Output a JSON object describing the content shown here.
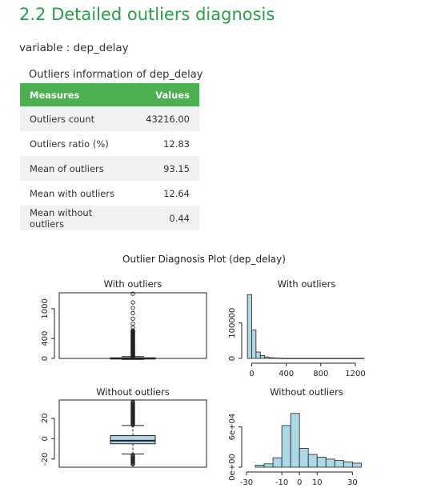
{
  "section": {
    "title": "2.2 Detailed outliers diagnosis",
    "variable_line": "variable : dep_delay"
  },
  "outliers_table": {
    "caption": "Outliers information of dep_delay",
    "headers": [
      "Measures",
      "Values"
    ],
    "rows": [
      {
        "measure": "Outliers count",
        "value": "43216.00"
      },
      {
        "measure": "Outliers ratio (%)",
        "value": "12.83"
      },
      {
        "measure": "Mean of outliers",
        "value": "93.15"
      },
      {
        "measure": "Mean with outliers",
        "value": "12.64"
      },
      {
        "measure": "Mean without outliers",
        "value": "0.44"
      }
    ]
  },
  "plot": {
    "main_title": "Outlier Diagnosis Plot (dep_delay)",
    "fill_color": "#add8e6"
  },
  "chart_data": [
    {
      "type": "box",
      "title": "With outliers",
      "ylim": [
        0,
        1320
      ],
      "y_ticks": [
        "0",
        "400",
        "1000"
      ],
      "y_tick_values": [
        0,
        400,
        1000
      ],
      "box": {
        "min": -20,
        "q1": -5,
        "median": -2,
        "q3": 12,
        "whisker_high": 37
      },
      "outliers": [
        45,
        60,
        80,
        100,
        130,
        160,
        200,
        240,
        280,
        320,
        360,
        400,
        450,
        500,
        560,
        620,
        700,
        800,
        911,
        1014,
        1126,
        1301
      ]
    },
    {
      "type": "bar",
      "title": "With outliers",
      "xlim": [
        -60,
        1330
      ],
      "ylim": [
        0,
        185000
      ],
      "x_ticks": [
        "0",
        "400",
        "800",
        "1200"
      ],
      "x_tick_values": [
        0,
        400,
        800,
        1200
      ],
      "y_ticks": [
        "0",
        "100000"
      ],
      "y_tick_values": [
        0,
        100000
      ],
      "bins": [
        {
          "from": -50,
          "to": 0,
          "count": 180000
        },
        {
          "from": 0,
          "to": 50,
          "count": 80000
        },
        {
          "from": 50,
          "to": 100,
          "count": 18000
        },
        {
          "from": 100,
          "to": 150,
          "count": 8000
        },
        {
          "from": 150,
          "to": 200,
          "count": 4000
        },
        {
          "from": 200,
          "to": 250,
          "count": 2000
        },
        {
          "from": 250,
          "to": 300,
          "count": 1200
        },
        {
          "from": 300,
          "to": 350,
          "count": 800
        },
        {
          "from": 350,
          "to": 1300,
          "count": 300
        }
      ]
    },
    {
      "type": "box",
      "title": "Without outliers",
      "ylim": [
        -28,
        38
      ],
      "y_ticks": [
        "-20",
        "0",
        "20"
      ],
      "y_tick_values": [
        -20,
        0,
        20
      ],
      "box": {
        "min": -15,
        "q1": -5,
        "median": -2,
        "q3": 3,
        "whisker_high": 13
      },
      "outliers_high": [
        14,
        16,
        18,
        20,
        22,
        24,
        26,
        28,
        30,
        32,
        34,
        36
      ],
      "outliers_low": [
        -17,
        -19,
        -21,
        -23,
        -25
      ]
    },
    {
      "type": "bar",
      "title": "Without outliers",
      "xlim": [
        -30,
        38
      ],
      "ylim": [
        0,
        100000
      ],
      "x_ticks": [
        "-30",
        "-10",
        "0",
        "10",
        "30"
      ],
      "x_tick_values": [
        -30,
        -10,
        0,
        10,
        30
      ],
      "y_ticks": [
        "0e+00",
        "6e+04"
      ],
      "y_tick_values": [
        0,
        60000
      ],
      "bins": [
        {
          "from": -25,
          "to": -20,
          "count": 3000
        },
        {
          "from": -20,
          "to": -15,
          "count": 5000
        },
        {
          "from": -15,
          "to": -10,
          "count": 14000
        },
        {
          "from": -10,
          "to": -5,
          "count": 62000
        },
        {
          "from": -5,
          "to": 0,
          "count": 80000
        },
        {
          "from": 0,
          "to": 5,
          "count": 28000
        },
        {
          "from": 5,
          "to": 10,
          "count": 19000
        },
        {
          "from": 10,
          "to": 15,
          "count": 15000
        },
        {
          "from": 15,
          "to": 20,
          "count": 12000
        },
        {
          "from": 20,
          "to": 25,
          "count": 10000
        },
        {
          "from": 25,
          "to": 30,
          "count": 8000
        },
        {
          "from": 30,
          "to": 35,
          "count": 6000
        }
      ]
    }
  ]
}
